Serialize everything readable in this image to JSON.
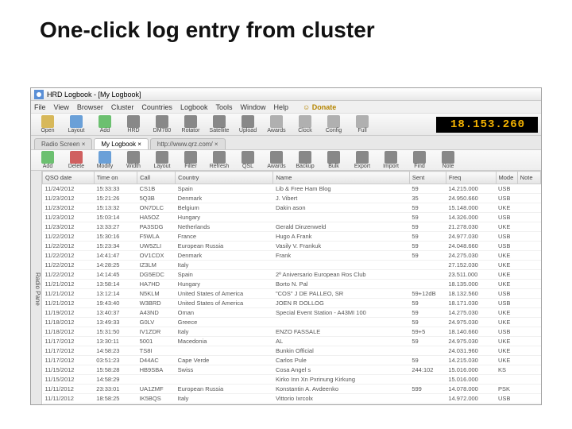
{
  "slide": {
    "title": "One-click log entry from cluster"
  },
  "window": {
    "title": "HRD Logbook - [My Logbook]"
  },
  "menu": {
    "items": [
      "File",
      "View",
      "Browser",
      "Cluster",
      "Countries",
      "Logbook",
      "Tools",
      "Window",
      "Help"
    ],
    "donate": "Donate"
  },
  "toolbar1": {
    "buttons": [
      {
        "label": "Open",
        "color": "#d7b85a"
      },
      {
        "label": "Layout",
        "color": "#6aa0d8"
      },
      {
        "label": "Add",
        "color": "#6cc070"
      },
      {
        "label": "HRD",
        "color": "#888"
      },
      {
        "label": "DM780",
        "color": "#888"
      },
      {
        "label": "Rotator",
        "color": "#888"
      },
      {
        "label": "Satellite",
        "color": "#888"
      },
      {
        "label": "Upload",
        "color": "#888"
      },
      {
        "label": "Awards",
        "color": "#b0b0b0"
      },
      {
        "label": "Clock",
        "color": "#b0b0b0"
      },
      {
        "label": "Config",
        "color": "#b0b0b0"
      },
      {
        "label": "Full",
        "color": "#b0b0b0"
      }
    ],
    "frequency": "18.153.260"
  },
  "tabs": {
    "items": [
      "Radio Screen",
      "My Logbook",
      "http://www.qrz.com/"
    ],
    "active_index": 1
  },
  "toolbar2": {
    "buttons": [
      {
        "label": "Add",
        "color": "#6cc070"
      },
      {
        "label": "Delete",
        "color": "#d06060"
      },
      {
        "label": "Modify",
        "color": "#6aa0d8"
      },
      {
        "label": "Width",
        "color": "#888"
      },
      {
        "label": "Layout",
        "color": "#888"
      },
      {
        "label": "Filter",
        "color": "#888"
      },
      {
        "label": "Refresh",
        "color": "#888"
      },
      {
        "label": "QSL",
        "color": "#888"
      },
      {
        "label": "Awards",
        "color": "#888"
      },
      {
        "label": "Backup",
        "color": "#888"
      },
      {
        "label": "Bulk",
        "color": "#888"
      },
      {
        "label": "Export",
        "color": "#888"
      },
      {
        "label": "Import",
        "color": "#888"
      },
      {
        "label": "Find",
        "color": "#888"
      },
      {
        "label": "Note",
        "color": "#888"
      }
    ]
  },
  "sidebar": {
    "label": "Radio Pane"
  },
  "grid": {
    "columns": [
      "QSO date",
      "Time on",
      "Call",
      "Country",
      "Name",
      "Sent",
      "Freq",
      "Mode",
      "Note"
    ],
    "rows": [
      [
        "11/24/2012",
        "15:33:33",
        "CS1B",
        "Spain",
        "Lib & Free Ham Blog",
        "59",
        "14.215.000",
        "USB",
        ""
      ],
      [
        "11/23/2012",
        "15:21:26",
        "5Q3B",
        "Denmark",
        "J. Vibert",
        "35",
        "24.950.660",
        "USB",
        ""
      ],
      [
        "11/23/2012",
        "15:13:32",
        "ON7DLC",
        "Belgium",
        "Dakin ason",
        "59",
        "15.148.000",
        "UKE",
        ""
      ],
      [
        "11/23/2012",
        "15:03:14",
        "HA5OZ",
        "Hungary",
        "",
        "59",
        "14.326.000",
        "USB",
        ""
      ],
      [
        "11/23/2012",
        "13:33:27",
        "PA3SDG",
        "Netherlands",
        "Gerald Dinzenweld",
        "59",
        "21.278.030",
        "UKE",
        ""
      ],
      [
        "11/22/2012",
        "15:30:16",
        "F5WLA",
        "France",
        "Hugo A Frank",
        "59",
        "24.977.030",
        "USB",
        ""
      ],
      [
        "11/22/2012",
        "15:23:34",
        "UW5ZLI",
        "European Russia",
        "Vasily V. Frankuk",
        "59",
        "24.048.660",
        "USB",
        ""
      ],
      [
        "11/22/2012",
        "14:41:47",
        "OV1CDX",
        "Denmark",
        "Frank",
        "59",
        "24.275.030",
        "UKE",
        ""
      ],
      [
        "11/22/2012",
        "14:28:25",
        "IZ3LM",
        "Italy",
        "",
        "",
        "27.152.030",
        "UKE",
        ""
      ],
      [
        "11/22/2012",
        "14:14:45",
        "DG5EDC",
        "Spain",
        "2º Aniversario European Ros Club",
        "",
        "23.511.000",
        "UKE",
        ""
      ],
      [
        "11/21/2012",
        "13:58:14",
        "HA7HD",
        "Hungary",
        "Borto N. Pal",
        "",
        "18.135.000",
        "UKE",
        ""
      ],
      [
        "11/21/2012",
        "13:12:14",
        "N5KLM",
        "United States of America",
        "\"COS\" J DE PALLEO, SR",
        "59+12dB",
        "18.132.560",
        "USB",
        ""
      ],
      [
        "11/21/2012",
        "19:43:40",
        "W3BRD",
        "United States of America",
        "JOEN R DOLLOG",
        "59",
        "18.171.030",
        "USB",
        ""
      ],
      [
        "11/19/2012",
        "13:40:37",
        "A43ND",
        "Oman",
        "Special Event Station - A43MI 100",
        "59",
        "14.275.030",
        "UKE",
        ""
      ],
      [
        "11/18/2012",
        "13:49:33",
        "G0LV",
        "Greece",
        "",
        "59",
        "24.975.030",
        "UKE",
        ""
      ],
      [
        "11/18/2012",
        "15:31:50",
        "IV1ZDR",
        "Italy",
        "ENZO FASSALE",
        "59+5",
        "18.140.660",
        "USB",
        ""
      ],
      [
        "11/17/2012",
        "13:30:11",
        "5001",
        "Macedonia",
        "AL",
        "59",
        "24.975.030",
        "UKE",
        ""
      ],
      [
        "11/17/2012",
        "14:58:23",
        "TS8I",
        "",
        "Bunkin Official",
        "",
        "24.031.960",
        "UKE",
        ""
      ],
      [
        "11/17/2012",
        "03:51:23",
        "D44AC",
        "Cape Verde",
        "Carlos Pule",
        "59",
        "14.215.030",
        "UKE",
        ""
      ],
      [
        "11/15/2012",
        "15:58:28",
        "HB9SBA",
        "Swiss",
        "Cosa Angel s",
        "244:102",
        "15.016.000",
        "KS",
        ""
      ],
      [
        "11/15/2012",
        "14:58:29",
        "",
        "",
        "Kirko Inn Xn Pxrinung Kirkung",
        "",
        "15.016.000",
        "",
        ""
      ],
      [
        "11/11/2012",
        "23:33:01",
        "UA1ZMF",
        "European Russia",
        "Konstantin A. Avdeenko",
        "599",
        "14.078.000",
        "PSK",
        ""
      ],
      [
        "11/11/2012",
        "18:58:25",
        "IK5BQS",
        "Italy",
        "Vittorio Ixrcolx",
        "",
        "14.972.000",
        "USB",
        ""
      ],
      [
        "11/11/2012",
        "14:54:48",
        "7T1II",
        "Algeria",
        "Special call for 50th anniver...",
        "59",
        "24.952.000",
        "USB",
        ""
      ],
      [
        "11/11/2012",
        "14:48:43",
        "",
        "Algeria",
        "Skech Fahrvaz",
        "",
        "24.892.500",
        "",
        ""
      ],
      [
        "11/11/2012",
        "14:43:41",
        "RZ3DMV",
        "European Russia",
        "SFVTM KLODED",
        "",
        "24.948.000",
        "UKE",
        ""
      ]
    ]
  },
  "colors": {
    "freq_bg": "#000000",
    "freq_fg": "#f8b500"
  }
}
